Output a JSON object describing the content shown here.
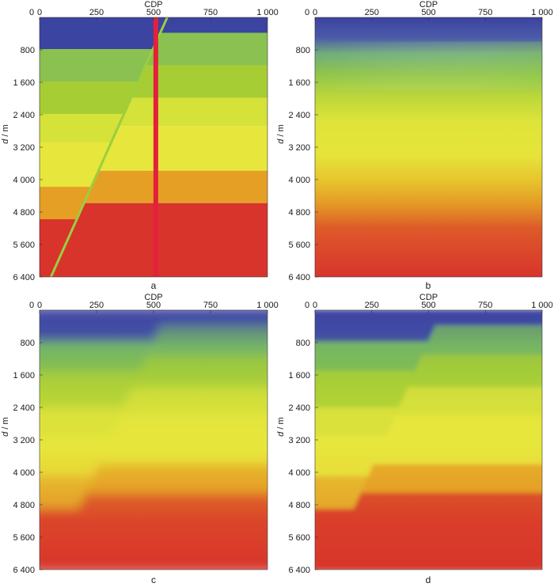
{
  "chart_data": [
    {
      "id": "a",
      "type": "heatmap",
      "title": "a",
      "xlabel": "CDP",
      "ylabel": "d / m",
      "xlim": [
        0,
        1000
      ],
      "ylim": [
        6400,
        0
      ],
      "xticks": [
        "0",
        "250",
        "500",
        "750",
        "1 000"
      ],
      "yticks": [
        "800",
        "1 600",
        "2 400",
        "3 200",
        "4 000",
        "4 800",
        "5 600",
        "6 400"
      ],
      "mode": "sharp",
      "fault": {
        "x_top": 560,
        "d_top": 0,
        "x_bottom": 50,
        "d_bottom": 6400
      },
      "layers": {
        "footwall_right": [
          {
            "top": 0,
            "color": "#3c44a2"
          },
          {
            "top": 380,
            "color": "#8ac151"
          },
          {
            "top": 1180,
            "color": "#a7cd35"
          },
          {
            "top": 1980,
            "color": "#d4e23a"
          },
          {
            "top": 2680,
            "color": "#e7e63c"
          },
          {
            "top": 3780,
            "color": "#e69f25"
          },
          {
            "top": 4580,
            "color": "#d8342c"
          }
        ],
        "hanging_left": [
          {
            "top": 0,
            "color": "#3c44a2"
          },
          {
            "top": 780,
            "color": "#8ac151"
          },
          {
            "top": 1580,
            "color": "#a7cd35"
          },
          {
            "top": 2380,
            "color": "#d4e23a"
          },
          {
            "top": 3080,
            "color": "#e7e63c"
          },
          {
            "top": 4180,
            "color": "#e69f25"
          },
          {
            "top": 4980,
            "color": "#d8342c"
          }
        ]
      },
      "well": {
        "cdp": 510,
        "color": "#e3213a"
      }
    },
    {
      "id": "b",
      "type": "heatmap",
      "title": "b",
      "xlabel": "CDP",
      "ylabel": "d / m",
      "xlim": [
        0,
        1000
      ],
      "ylim": [
        6400,
        0
      ],
      "xticks": [
        "0",
        "250",
        "500",
        "750",
        "1 000"
      ],
      "yticks": [
        "800",
        "1 600",
        "2 400",
        "3 200",
        "4 000",
        "4 800",
        "5 600",
        "6 400"
      ],
      "mode": "smooth"
    },
    {
      "id": "c",
      "type": "heatmap",
      "title": "c",
      "xlabel": "CDP",
      "ylabel": "d / m",
      "xlim": [
        0,
        1000
      ],
      "ylim": [
        6400,
        0
      ],
      "xticks": [
        "0",
        "250",
        "500",
        "750",
        "1 000"
      ],
      "yticks": [
        "800",
        "1 600",
        "2 400",
        "3 200",
        "4 000",
        "4 800",
        "5 600",
        "6 400"
      ],
      "mode": "blurred"
    },
    {
      "id": "d",
      "type": "heatmap",
      "title": "d",
      "xlabel": "CDP",
      "ylabel": "d / m",
      "xlim": [
        0,
        1000
      ],
      "ylim": [
        6400,
        0
      ],
      "xticks": [
        "0",
        "250",
        "500",
        "750",
        "1 000"
      ],
      "yticks": [
        "800",
        "1 600",
        "2 400",
        "3 200",
        "4 000",
        "4 800",
        "5 600",
        "6 400"
      ],
      "mode": "semi"
    }
  ],
  "colors": {
    "blue": "#3c44a2",
    "green": "#8ac151",
    "yellowgreen": "#a7cd35",
    "yellow": "#e7e63c",
    "orange": "#e69f25",
    "red": "#d8342c"
  }
}
